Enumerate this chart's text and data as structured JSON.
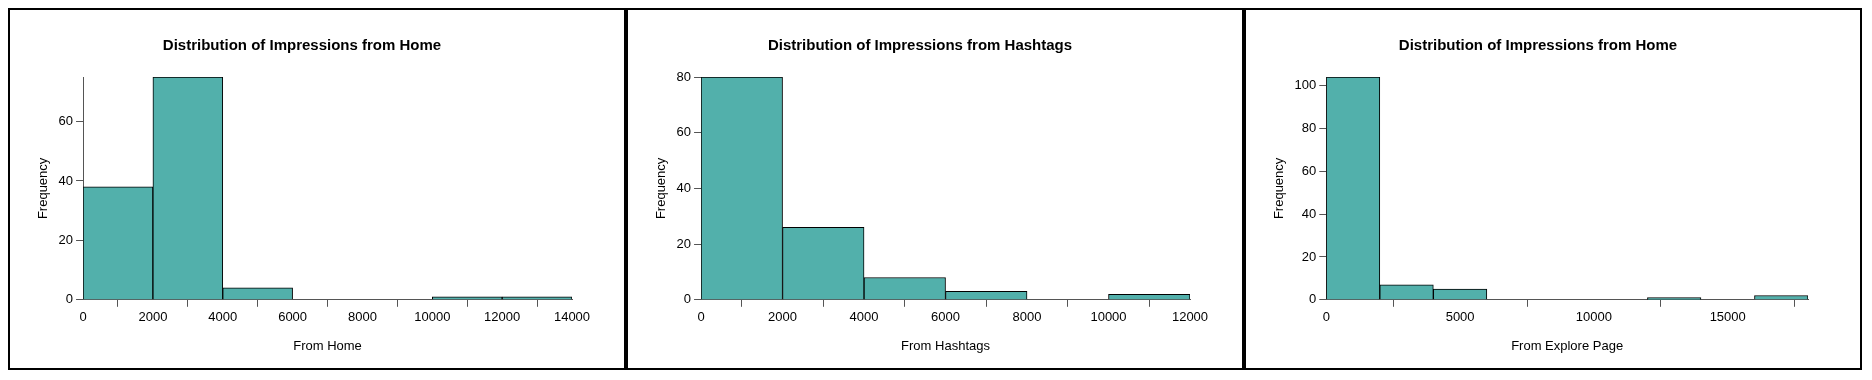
{
  "chart_data": [
    {
      "type": "histogram",
      "title": "Distribution of Impressions from Home",
      "xlabel": "From Home",
      "ylabel": "Frequency",
      "color": "#52b0ab",
      "bins": [
        0,
        2000,
        4000,
        6000,
        8000,
        10000,
        12000,
        14000
      ],
      "values": [
        38,
        75,
        4,
        0,
        0,
        1,
        1
      ],
      "xlim": [
        0,
        14000
      ],
      "xticks": [
        0,
        2000,
        4000,
        6000,
        8000,
        10000,
        12000,
        14000
      ],
      "ylim": [
        0,
        75
      ],
      "yticks": [
        0,
        20,
        40,
        60
      ],
      "grid": false
    },
    {
      "type": "histogram",
      "title": "Distribution of Impressions from Hashtags",
      "xlabel": "From Hashtags",
      "ylabel": "Frequency",
      "color": "#52b0ab",
      "bins": [
        0,
        2000,
        4000,
        6000,
        8000,
        10000,
        12000
      ],
      "values": [
        80,
        26,
        8,
        3,
        0,
        2
      ],
      "xlim": [
        0,
        12000
      ],
      "xticks": [
        0,
        2000,
        4000,
        6000,
        8000,
        10000,
        12000
      ],
      "ylim": [
        0,
        80
      ],
      "yticks": [
        0,
        20,
        40,
        60,
        80
      ],
      "grid": false
    },
    {
      "type": "histogram",
      "title": "Distribution of Impressions from Home",
      "xlabel": "From Explore Page",
      "ylabel": "Frequency",
      "color": "#52b0ab",
      "bins": [
        0,
        2000,
        4000,
        6000,
        8000,
        10000,
        12000,
        14000,
        16000,
        18000
      ],
      "values": [
        104,
        7,
        5,
        0,
        0,
        0,
        1,
        0,
        2
      ],
      "xlim": [
        0,
        18000
      ],
      "xticks": [
        0,
        5000,
        10000,
        15000
      ],
      "ylim": [
        0,
        104
      ],
      "yticks": [
        0,
        20,
        40,
        60,
        80,
        100
      ],
      "grid": false
    }
  ]
}
